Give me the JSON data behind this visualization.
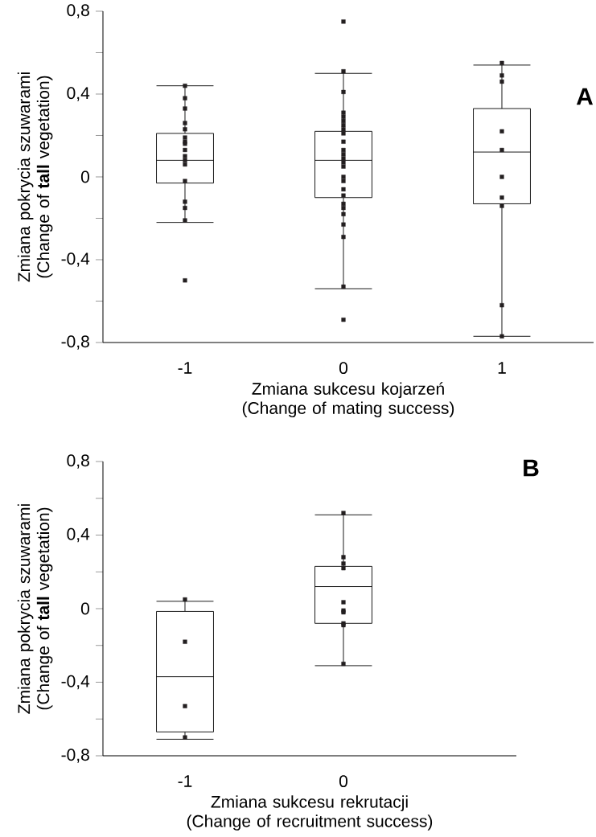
{
  "chart_data": [
    {
      "type": "box",
      "title": "A",
      "xlabel": "Zmiana sukcesu kojarzeń (Change of mating success)",
      "ylabel": "Zmiana pokrycia szuwarami (Change of **tall** vegetation)",
      "categories": [
        "-1",
        "0",
        "1"
      ],
      "ylim": [
        -0.8,
        0.8
      ],
      "yticks": [
        {
          "value": -0.8,
          "label": "-0,8"
        },
        {
          "value": -0.6,
          "label": null
        },
        {
          "value": -0.4,
          "label": "-0,4"
        },
        {
          "value": -0.2,
          "label": null
        },
        {
          "value": 0,
          "label": "0"
        },
        {
          "value": 0.2,
          "label": null
        },
        {
          "value": 0.4,
          "label": "0,4"
        },
        {
          "value": 0.6,
          "label": null
        },
        {
          "value": 0.8,
          "label": "0,8"
        }
      ],
      "boxes": [
        {
          "low": -0.22,
          "q1": -0.03,
          "median": 0.08,
          "q3": 0.21,
          "high": 0.44
        },
        {
          "low": -0.54,
          "q1": -0.1,
          "median": 0.08,
          "q3": 0.22,
          "high": 0.5
        },
        {
          "low": -0.77,
          "q1": -0.13,
          "median": 0.12,
          "q3": 0.33,
          "high": 0.54
        }
      ],
      "marker": "square",
      "series": [
        {
          "type": "scatter",
          "color": "#231f20",
          "x": [
            "-1",
            "-1",
            "-1",
            "-1",
            "-1",
            "-1",
            "-1",
            "-1",
            "-1",
            "-1",
            "-1",
            "-1",
            "-1",
            "-1",
            "-1",
            "-1",
            "-1",
            "0",
            "0",
            "0",
            "0",
            "0",
            "0",
            "0",
            "0",
            "0",
            "0",
            "0",
            "0",
            "0",
            "0",
            "0",
            "0",
            "0",
            "0",
            "0",
            "0",
            "0",
            "0",
            "0",
            "0",
            "0",
            "0",
            "0",
            "1",
            "1",
            "1",
            "1",
            "1",
            "1",
            "1",
            "1",
            "1",
            "1"
          ],
          "values": [
            0.44,
            0.38,
            0.33,
            0.26,
            0.23,
            0.19,
            0.17,
            0.16,
            0.13,
            0.1,
            0.08,
            0.06,
            -0.02,
            -0.12,
            -0.15,
            -0.21,
            -0.5,
            0.75,
            0.51,
            0.41,
            0.31,
            0.29,
            0.27,
            0.25,
            0.23,
            0.21,
            null,
            0.17,
            0.13,
            0.11,
            0.09,
            0.07,
            0.05,
            0,
            -0.02,
            -0.06,
            -0.09,
            -0.13,
            -0.15,
            -0.18,
            -0.23,
            -0.29,
            -0.53,
            -0.69,
            0.55,
            0.49,
            0.46,
            0.22,
            0.13,
            0,
            -0.1,
            -0.14,
            -0.62,
            -0.77
          ]
        }
      ]
    },
    {
      "type": "box",
      "title": "B",
      "xlabel": "Zmiana sukcesu rekrutacji (Change of recruitment success)",
      "ylabel": "Zmiana pokrycia szuwarami (Change of **tall** vegetation)",
      "categories": [
        "-1",
        "0"
      ],
      "ylim": [
        -0.8,
        0.8
      ],
      "yticks": [
        {
          "value": -0.8,
          "label": "-0,8"
        },
        {
          "value": -0.6,
          "label": null
        },
        {
          "value": -0.4,
          "label": "-0,4"
        },
        {
          "value": -0.2,
          "label": null
        },
        {
          "value": 0,
          "label": "0"
        },
        {
          "value": 0.2,
          "label": null
        },
        {
          "value": 0.4,
          "label": "0,4"
        },
        {
          "value": 0.6,
          "label": null
        },
        {
          "value": 0.8,
          "label": "0,8"
        }
      ],
      "boxes": [
        {
          "low": -0.71,
          "q1": -0.67,
          "median": -0.37,
          "q3": -0.015,
          "high": 0.04
        },
        {
          "low": -0.31,
          "q1": -0.08,
          "median": 0.12,
          "q3": 0.23,
          "high": 0.51
        }
      ],
      "marker": "square",
      "series": [
        {
          "type": "scatter",
          "color": "#231f20",
          "x": [
            "-1",
            "-1",
            "-1",
            "-1",
            "0",
            "0",
            "0",
            "0",
            "0",
            "0",
            "0",
            "0",
            "0",
            "0"
          ],
          "values": [
            0.05,
            -0.18,
            -0.53,
            -0.7,
            0.52,
            0.28,
            0.245,
            0.22,
            0.035,
            -0.01,
            -0.02,
            -0.08,
            -0.09,
            -0.3
          ]
        }
      ]
    }
  ]
}
